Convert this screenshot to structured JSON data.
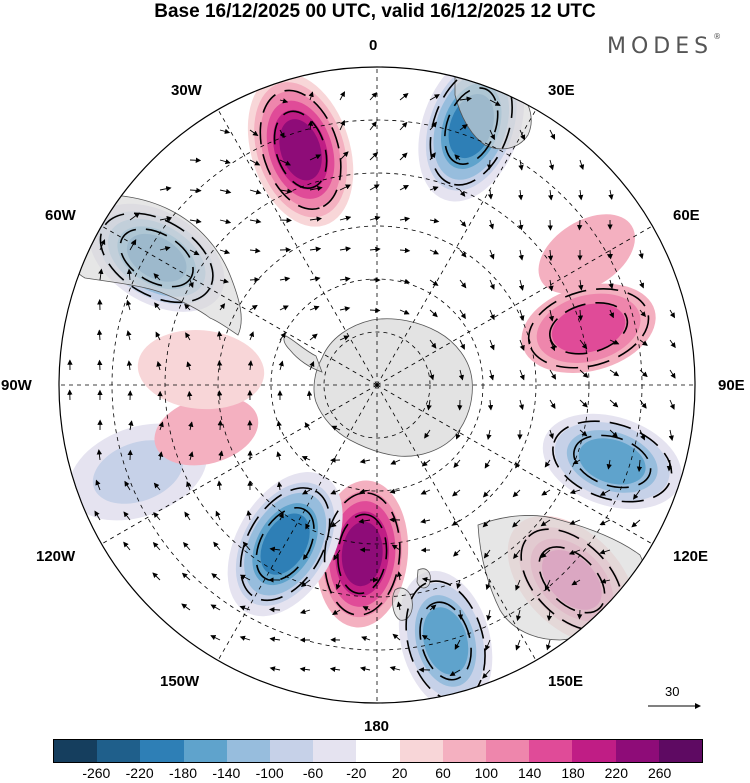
{
  "title": "Base 16/12/2025 00 UTC, valid 16/12/2025 12 UTC",
  "logo": "MODES",
  "logo_mark": "®",
  "longitude_labels": {
    "lon_0": "0",
    "lon_30e": "30E",
    "lon_60e": "60E",
    "lon_90e": "90E",
    "lon_120e": "120E",
    "lon_150e": "150E",
    "lon_180": "180",
    "lon_150w": "150W",
    "lon_120w": "120W",
    "lon_90w": "90W",
    "lon_60w": "60W",
    "lon_30w": "30W"
  },
  "reference_vector": "30",
  "colorbar": {
    "colors": [
      "#153e5e",
      "#1f5f8b",
      "#2e7fb6",
      "#5fa3cc",
      "#97bddd",
      "#c6d1e8",
      "#e5e3f0",
      "#ffffff",
      "#f8d6d8",
      "#f4b0c0",
      "#ee86ac",
      "#e04b98",
      "#c01d85",
      "#8e0c78",
      "#5e0a62"
    ],
    "ticks": [
      "-260",
      "-220",
      "-180",
      "-140",
      "-100",
      "-60",
      "-20",
      "20",
      "60",
      "100",
      "140",
      "180",
      "220",
      "260"
    ]
  },
  "anomalies": [
    {
      "lon": 20,
      "colat": 78,
      "value": -200
    },
    {
      "lon": -18,
      "colat": 70,
      "value": 240
    },
    {
      "lon": -60,
      "colat": 72,
      "value": -220
    },
    {
      "lon": 75,
      "colat": 62,
      "value": 140
    },
    {
      "lon": 58,
      "colat": 70,
      "value": 60
    },
    {
      "lon": 108,
      "colat": 70,
      "value": -180
    },
    {
      "lon": 135,
      "colat": 78,
      "value": 160
    },
    {
      "lon": 165,
      "colat": 75,
      "value": -180
    },
    {
      "lon": -175,
      "colat": 48,
      "value": 220
    },
    {
      "lon": -150,
      "colat": 52,
      "value": -200
    },
    {
      "lon": -110,
      "colat": 72,
      "value": -80
    },
    {
      "lon": -105,
      "colat": 50,
      "value": 60
    },
    {
      "lon": -85,
      "colat": 50,
      "value": 40
    }
  ]
}
